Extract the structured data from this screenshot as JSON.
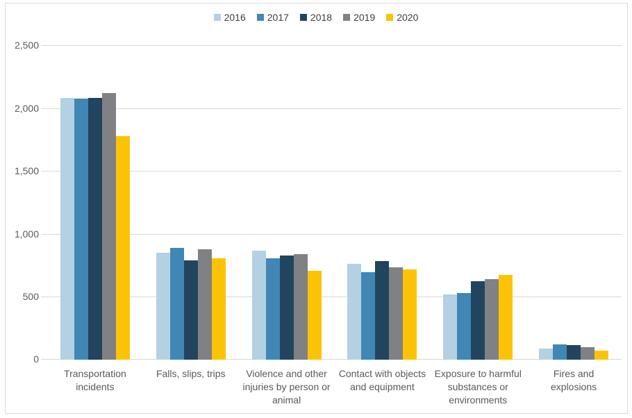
{
  "page": {
    "background_color": "#FFFFFF",
    "frame_border_color": "#D9D9D9",
    "text_color": "#595959",
    "gridline_color": "#D9D9D9"
  },
  "chart_data": {
    "type": "bar",
    "title": "",
    "categories": [
      "Transportation incidents",
      "Falls, slips, trips",
      "Violence and other injuries by person or animal",
      "Contact with objects and equipment",
      "Exposure to harmful substances or environments",
      "Fires and explosions"
    ],
    "category_display": [
      "Transportation\nincidents",
      "Falls, slips, trips",
      "Violence and other\ninjuries by person or\nanimal",
      "Contact with objects\nand equipment",
      "Exposure to harmful\nsubstances or\nenvironments",
      "Fires and\nexplosions"
    ],
    "series": [
      {
        "name": "2016",
        "color": "#B3D1E3",
        "values": [
          2083,
          849,
          866,
          761,
          518,
          88
        ]
      },
      {
        "name": "2017",
        "color": "#4187B5",
        "values": [
          2077,
          887,
          807,
          695,
          531,
          123
        ]
      },
      {
        "name": "2018",
        "color": "#21455E",
        "values": [
          2080,
          791,
          828,
          786,
          621,
          115
        ]
      },
      {
        "name": "2019",
        "color": "#808184",
        "values": [
          2122,
          880,
          841,
          732,
          642,
          99
        ]
      },
      {
        "name": "2020",
        "color": "#FCC306",
        "values": [
          1778,
          805,
          705,
          716,
          672,
          72
        ]
      }
    ],
    "ylim": [
      0,
      2500
    ],
    "ytick_labels": [
      "0",
      "500",
      "1,000",
      "1,500",
      "2,000",
      "2,500"
    ],
    "grid": true,
    "legend_position": "top"
  }
}
